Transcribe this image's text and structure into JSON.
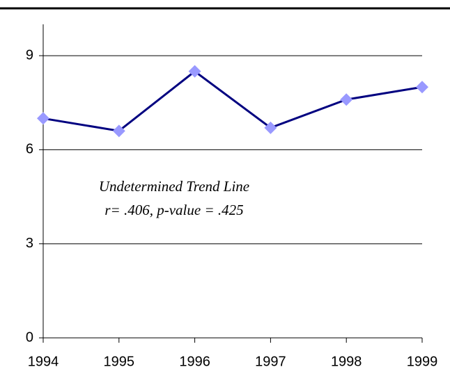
{
  "chart_data": {
    "type": "line",
    "categories": [
      "1994",
      "1995",
      "1996",
      "1997",
      "1998",
      "1999"
    ],
    "series": [
      {
        "name": null,
        "color": "#000080",
        "marker_color": "#9999ff",
        "values": [
          7.0,
          6.6,
          8.5,
          6.7,
          7.6,
          8.0
        ]
      }
    ],
    "ylim": [
      0,
      10
    ],
    "yticks": [
      0,
      3,
      6,
      9
    ],
    "grid": true,
    "annotations": [
      "Undetermined Trend Line",
      "r= .406, p-value = .425"
    ]
  }
}
